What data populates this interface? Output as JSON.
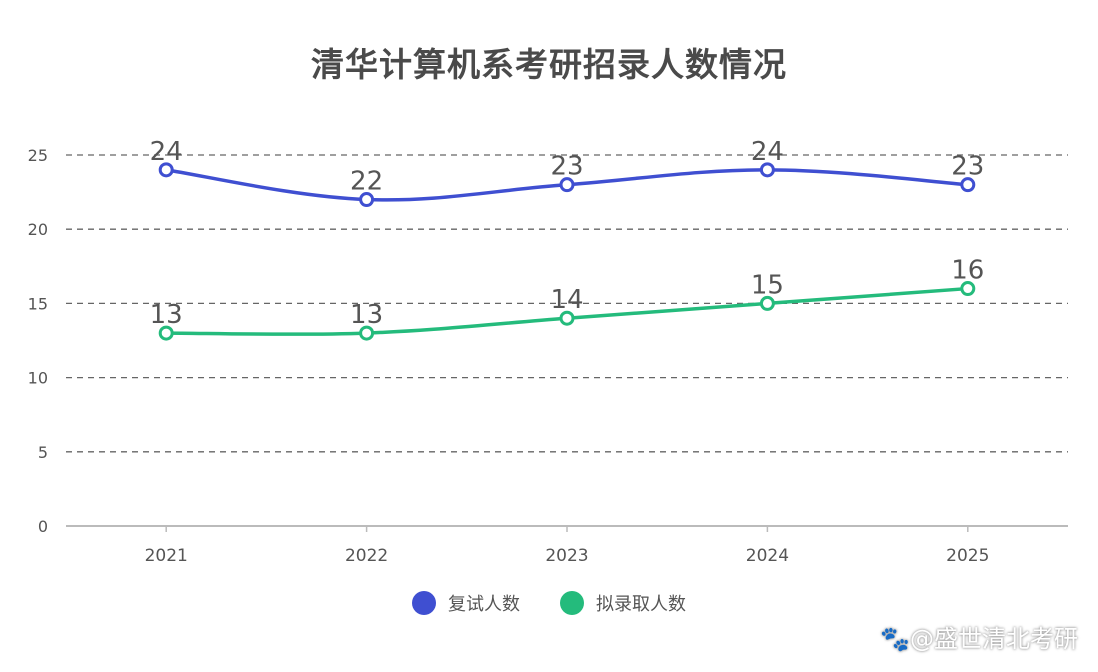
{
  "title": "清华计算机系考研招录人数情况",
  "watermark": "🐾@盛世清北考研",
  "chart_data": {
    "type": "line",
    "categories": [
      "2021",
      "2022",
      "2023",
      "2024",
      "2025"
    ],
    "ylim": [
      0,
      25
    ],
    "yticks": [
      0,
      5,
      10,
      15,
      20,
      25
    ],
    "grid": true,
    "legend_position": "bottom-center",
    "series": [
      {
        "name": "复试人数",
        "values": [
          24,
          22,
          23,
          24,
          23
        ],
        "color": "#3f4fd1"
      },
      {
        "name": "拟录取人数",
        "values": [
          13,
          13,
          14,
          15,
          16
        ],
        "color": "#24bb7c"
      }
    ]
  }
}
